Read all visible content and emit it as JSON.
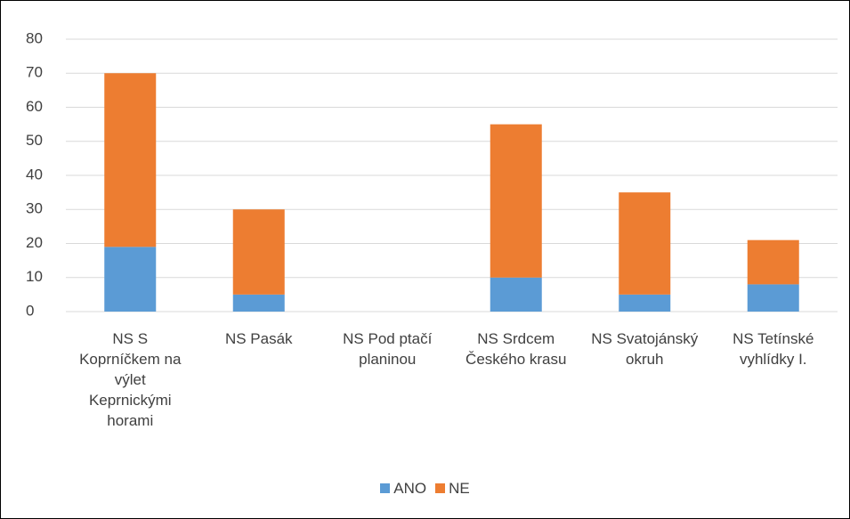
{
  "chart_data": {
    "type": "stacked_bar",
    "categories": [
      "NS S Koprníčkem na výlet Keprnickými horami",
      "NS Pasák",
      "NS Pod ptačí planinou",
      "NS Srdcem Českého krasu",
      "NS Svatojánský okruh",
      "NS Tetínské vyhlídky I."
    ],
    "series": [
      {
        "name": "ANO",
        "color": "#5b9bd5",
        "values": [
          19,
          5,
          0,
          10,
          5,
          8
        ]
      },
      {
        "name": "NE",
        "color": "#ed7d31",
        "values": [
          51,
          25,
          0,
          45,
          30,
          13
        ]
      }
    ],
    "ylim": [
      0,
      80
    ],
    "yticks": [
      0,
      10,
      20,
      30,
      40,
      50,
      60,
      70,
      80
    ],
    "grid": true,
    "legend": "bottom"
  }
}
